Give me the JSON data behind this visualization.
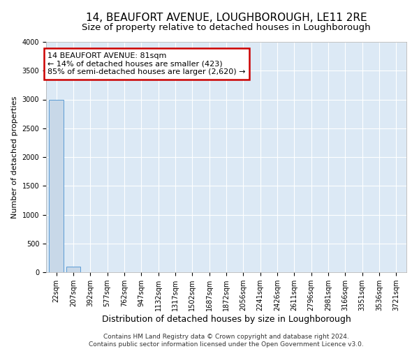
{
  "title": "14, BEAUFORT AVENUE, LOUGHBOROUGH, LE11 2RE",
  "subtitle": "Size of property relative to detached houses in Loughborough",
  "xlabel": "Distribution of detached houses by size in Loughborough",
  "ylabel": "Number of detached properties",
  "categories": [
    "22sqm",
    "207sqm",
    "392sqm",
    "577sqm",
    "762sqm",
    "947sqm",
    "1132sqm",
    "1317sqm",
    "1502sqm",
    "1687sqm",
    "1872sqm",
    "2056sqm",
    "2241sqm",
    "2426sqm",
    "2611sqm",
    "2796sqm",
    "2981sqm",
    "3166sqm",
    "3351sqm",
    "3536sqm",
    "3721sqm"
  ],
  "values": [
    3000,
    100,
    0,
    0,
    0,
    0,
    0,
    0,
    0,
    0,
    0,
    0,
    0,
    0,
    0,
    0,
    0,
    0,
    0,
    0,
    0
  ],
  "bar_color": "#c8d8e8",
  "bar_edge_color": "#5b9bd5",
  "ylim": [
    0,
    4000
  ],
  "yticks": [
    0,
    500,
    1000,
    1500,
    2000,
    2500,
    3000,
    3500,
    4000
  ],
  "annotation_title": "14 BEAUFORT AVENUE: 81sqm",
  "annotation_line2": "← 14% of detached houses are smaller (423)",
  "annotation_line3": "85% of semi-detached houses are larger (2,620) →",
  "annotation_box_color": "#cc0000",
  "annotation_fill_color": "#ffffff",
  "background_color": "#dce9f5",
  "grid_color": "#ffffff",
  "footer_line1": "Contains HM Land Registry data © Crown copyright and database right 2024.",
  "footer_line2": "Contains public sector information licensed under the Open Government Licence v3.0.",
  "title_fontsize": 11,
  "subtitle_fontsize": 9.5,
  "xlabel_fontsize": 9,
  "ylabel_fontsize": 8,
  "tick_fontsize": 7,
  "annotation_fontsize": 8,
  "footer_fontsize": 6.5
}
